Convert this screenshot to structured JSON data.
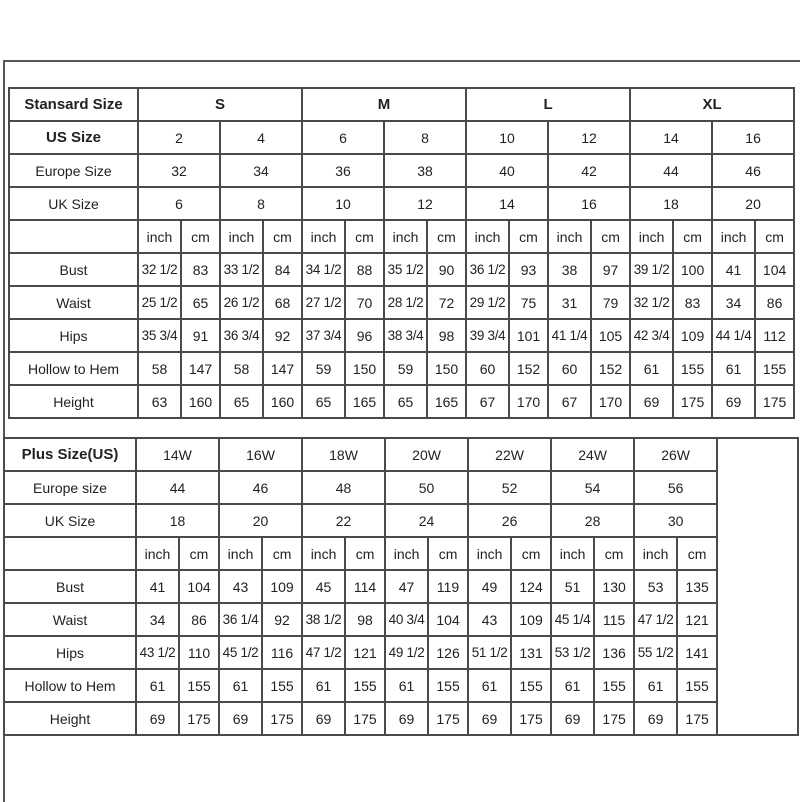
{
  "standard": {
    "header_label": "Stansard Size",
    "groups": [
      "S",
      "M",
      "L",
      "XL"
    ],
    "us_label": "US Size",
    "us": [
      "2",
      "4",
      "6",
      "8",
      "10",
      "12",
      "14",
      "16"
    ],
    "europe_label": "Europe Size",
    "europe": [
      "32",
      "34",
      "36",
      "38",
      "40",
      "42",
      "44",
      "46"
    ],
    "uk_label": "UK Size",
    "uk": [
      "6",
      "8",
      "10",
      "12",
      "14",
      "16",
      "18",
      "20"
    ],
    "unit_inch": "inch",
    "unit_cm": "cm",
    "measurements": [
      {
        "label": "Bust",
        "values": [
          "32 1/2",
          "83",
          "33 1/2",
          "84",
          "34 1/2",
          "88",
          "35 1/2",
          "90",
          "36 1/2",
          "93",
          "38",
          "97",
          "39 1/2",
          "100",
          "41",
          "104"
        ]
      },
      {
        "label": "Waist",
        "values": [
          "25 1/2",
          "65",
          "26 1/2",
          "68",
          "27 1/2",
          "70",
          "28 1/2",
          "72",
          "29 1/2",
          "75",
          "31",
          "79",
          "32 1/2",
          "83",
          "34",
          "86"
        ]
      },
      {
        "label": "Hips",
        "values": [
          "35 3/4",
          "91",
          "36 3/4",
          "92",
          "37 3/4",
          "96",
          "38 3/4",
          "98",
          "39 3/4",
          "101",
          "41 1/4",
          "105",
          "42 3/4",
          "109",
          "44 1/4",
          "112"
        ]
      },
      {
        "label": "Hollow to Hem",
        "values": [
          "58",
          "147",
          "58",
          "147",
          "59",
          "150",
          "59",
          "150",
          "60",
          "152",
          "60",
          "152",
          "61",
          "155",
          "61",
          "155"
        ]
      },
      {
        "label": "Height",
        "values": [
          "63",
          "160",
          "65",
          "160",
          "65",
          "165",
          "65",
          "165",
          "67",
          "170",
          "67",
          "170",
          "69",
          "175",
          "69",
          "175"
        ]
      }
    ]
  },
  "plus": {
    "header_label": "Plus Size(US)",
    "sizes": [
      "14W",
      "16W",
      "18W",
      "20W",
      "22W",
      "24W",
      "26W"
    ],
    "europe_label": "Europe size",
    "europe": [
      "44",
      "46",
      "48",
      "50",
      "52",
      "54",
      "56"
    ],
    "uk_label": "UK Size",
    "uk": [
      "18",
      "20",
      "22",
      "24",
      "26",
      "28",
      "30"
    ],
    "unit_inch": "inch",
    "unit_cm": "cm",
    "measurements": [
      {
        "label": "Bust",
        "values": [
          "41",
          "104",
          "43",
          "109",
          "45",
          "114",
          "47",
          "119",
          "49",
          "124",
          "51",
          "130",
          "53",
          "135"
        ]
      },
      {
        "label": "Waist",
        "values": [
          "34",
          "86",
          "36 1/4",
          "92",
          "38 1/2",
          "98",
          "40 3/4",
          "104",
          "43",
          "109",
          "45 1/4",
          "115",
          "47 1/2",
          "121"
        ]
      },
      {
        "label": "Hips",
        "values": [
          "43 1/2",
          "110",
          "45 1/2",
          "116",
          "47 1/2",
          "121",
          "49 1/2",
          "126",
          "51 1/2",
          "131",
          "53 1/2",
          "136",
          "55 1/2",
          "141"
        ]
      },
      {
        "label": "Hollow to Hem",
        "values": [
          "61",
          "155",
          "61",
          "155",
          "61",
          "155",
          "61",
          "155",
          "61",
          "155",
          "61",
          "155",
          "61",
          "155"
        ]
      },
      {
        "label": "Height",
        "values": [
          "69",
          "175",
          "69",
          "175",
          "69",
          "175",
          "69",
          "175",
          "69",
          "175",
          "69",
          "175",
          "69",
          "175"
        ]
      }
    ]
  }
}
